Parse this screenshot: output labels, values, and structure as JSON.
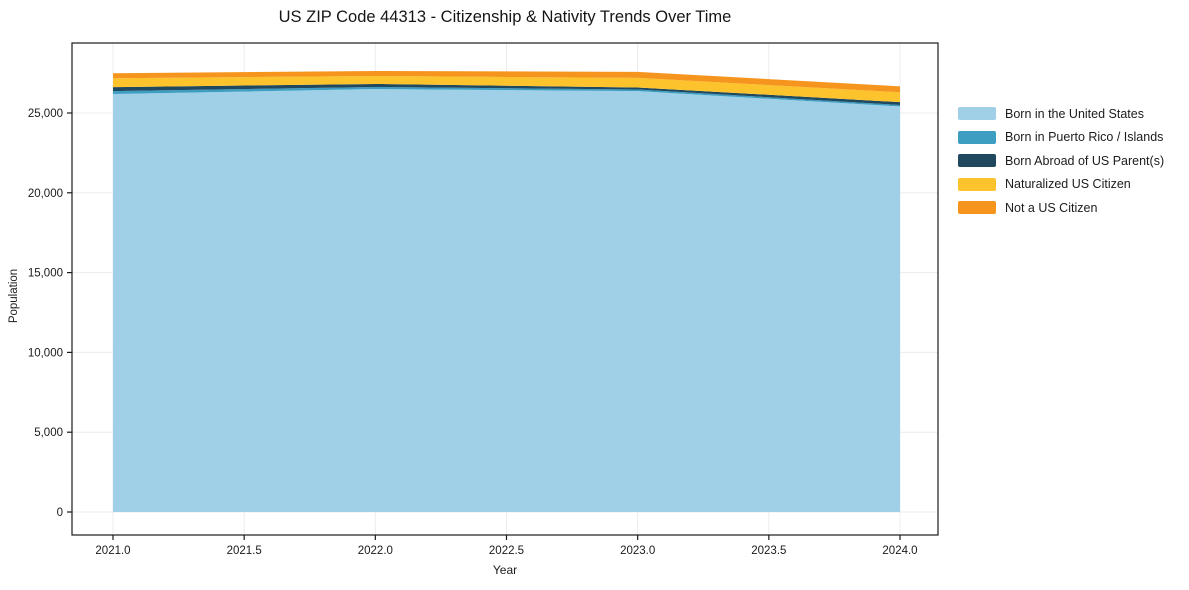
{
  "chart": {
    "title": "US ZIP Code 44313 - Citizenship & Nativity Trends Over Time",
    "xlabel": "Year",
    "ylabel": "Population"
  },
  "chart_data": {
    "type": "area",
    "stacked": true,
    "title": "US ZIP Code 44313 - Citizenship & Nativity Trends Over Time",
    "xlabel": "Year",
    "ylabel": "Population",
    "x": [
      2021,
      2022,
      2023,
      2024
    ],
    "series": [
      {
        "name": "Born in the United States",
        "color": "#9fd0e8",
        "values": [
          26190,
          26500,
          26370,
          25410
        ]
      },
      {
        "name": "Born in Puerto Rico / Islands",
        "color": "#3d9ec2",
        "values": [
          180,
          130,
          100,
          90
        ]
      },
      {
        "name": "Born Abroad of US Parent(s)",
        "color": "#20485e",
        "values": [
          250,
          190,
          130,
          180
        ]
      },
      {
        "name": "Naturalized US Citizen",
        "color": "#fcc32d",
        "values": [
          560,
          500,
          600,
          620
        ]
      },
      {
        "name": "Not a US Citizen",
        "color": "#f6951e",
        "values": [
          310,
          310,
          380,
          370
        ]
      }
    ],
    "x_ticks": [
      "2021.0",
      "2021.5",
      "2022.0",
      "2022.5",
      "2023.0",
      "2023.5",
      "2024.0"
    ],
    "y_ticks": [
      "0",
      "5,000",
      "10,000",
      "15,000",
      "20,000",
      "25,000"
    ],
    "xlim": [
      2020.84,
      2024.15
    ],
    "ylim": [
      0,
      29400
    ],
    "grid": true,
    "legend_position": "right",
    "grid_color": "#ececec",
    "frame_color": "#1a1a1a",
    "background_color": "#ffffff"
  }
}
